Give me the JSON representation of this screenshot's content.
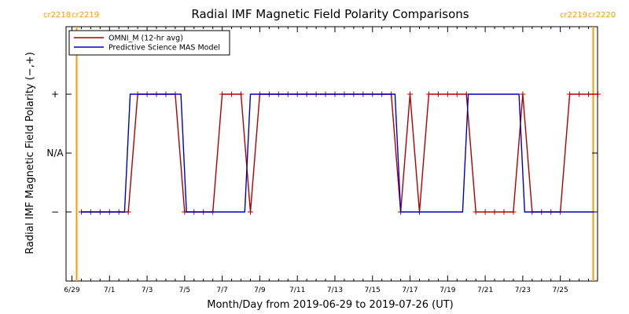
{
  "chart_data": {
    "type": "line",
    "title": "Radial IMF Magnetic Field Polarity Comparisons",
    "xlabel": "Month/Day from 2019-06-29 to 2019-07-26 (UT)",
    "ylabel": "Radial IMF Magnetic Field Polarity (−,+)",
    "xlim": [
      0,
      28
    ],
    "ylim": [
      -1.6,
      1.6
    ],
    "x_ticks": [
      {
        "x": 0,
        "label": "6/29"
      },
      {
        "x": 2,
        "label": "7/1"
      },
      {
        "x": 4,
        "label": "7/3"
      },
      {
        "x": 6,
        "label": "7/5"
      },
      {
        "x": 8,
        "label": "7/7"
      },
      {
        "x": 10,
        "label": "7/9"
      },
      {
        "x": 12,
        "label": "7/11"
      },
      {
        "x": 14,
        "label": "7/13"
      },
      {
        "x": 16,
        "label": "7/15"
      },
      {
        "x": 18,
        "label": "7/17"
      },
      {
        "x": 20,
        "label": "7/19"
      },
      {
        "x": 22,
        "label": "7/21"
      },
      {
        "x": 24,
        "label": "7/23"
      },
      {
        "x": 26,
        "label": "7/25"
      }
    ],
    "y_ticks": [
      {
        "y": 1,
        "label": "+"
      },
      {
        "y": 0,
        "label": "N/A"
      },
      {
        "y": -1,
        "label": "−"
      }
    ],
    "carrington_markers": [
      {
        "x": 0.25,
        "left": "cr2218",
        "right": "cr2219",
        "side": "left"
      },
      {
        "x": 27.75,
        "left": "cr2219",
        "right": "cr2220",
        "side": "right"
      }
    ],
    "legend_position": "top-left",
    "series": [
      {
        "name": "OMNI_M (12-hr avg)",
        "color": "#b00000",
        "markers": "plus",
        "x": [
          0.5,
          1.0,
          1.5,
          2.0,
          2.5,
          3.0,
          3.5,
          4.0,
          4.5,
          5.0,
          5.5,
          6.0,
          6.5,
          7.0,
          7.5,
          8.0,
          8.5,
          9.0,
          9.5,
          10.0,
          10.5,
          11.0,
          11.5,
          12.0,
          12.5,
          13.0,
          13.5,
          14.0,
          14.5,
          15.0,
          15.5,
          16.0,
          16.5,
          17.0,
          17.5,
          18.0,
          18.5,
          19.0,
          19.5,
          20.0,
          20.5,
          21.0,
          21.5,
          22.0,
          22.5,
          23.0,
          23.5,
          24.0,
          24.5,
          25.0,
          25.5,
          26.0,
          26.5,
          27.0,
          27.5,
          28.0
        ],
        "y": [
          -1,
          -1,
          -1,
          -1,
          -1,
          -1,
          1,
          1,
          1,
          1,
          1,
          -1,
          -1,
          -1,
          -1,
          1,
          1,
          1,
          -1,
          1,
          1,
          1,
          1,
          1,
          1,
          1,
          1,
          1,
          1,
          1,
          1,
          1,
          1,
          1,
          -1,
          1,
          -1,
          1,
          1,
          1,
          1,
          1,
          -1,
          -1,
          -1,
          -1,
          -1,
          1,
          -1,
          -1,
          -1,
          -1,
          1,
          1,
          1,
          1
        ]
      },
      {
        "name": "Predictive Science MAS Model",
        "color": "#0000c0",
        "markers": "none",
        "x": [
          0.5,
          2.8,
          3.1,
          5.8,
          6.1,
          9.2,
          9.5,
          17.2,
          17.5,
          20.8,
          21.1,
          23.8,
          24.1,
          27.8
        ],
        "y": [
          -1,
          -1,
          1,
          1,
          -1,
          -1,
          1,
          1,
          -1,
          -1,
          1,
          1,
          -1,
          -1
        ]
      }
    ]
  }
}
